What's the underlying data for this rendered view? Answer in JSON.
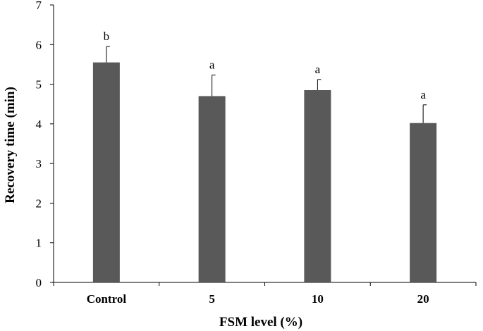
{
  "chart_data": {
    "type": "bar",
    "title": "",
    "xlabel": "FSM level (%)",
    "ylabel": "Recovery time (min)",
    "categories": [
      "Control",
      "5",
      "10",
      "20"
    ],
    "values": [
      5.55,
      4.7,
      4.85,
      4.02
    ],
    "errors": [
      0.4,
      0.53,
      0.27,
      0.46
    ],
    "significance": [
      "b",
      "a",
      "a",
      "a"
    ],
    "ylim": [
      0,
      7
    ],
    "yticks": [
      0,
      1,
      2,
      3,
      4,
      5,
      6,
      7
    ],
    "grid": false,
    "legend": "none",
    "bar_color": "#595959"
  }
}
